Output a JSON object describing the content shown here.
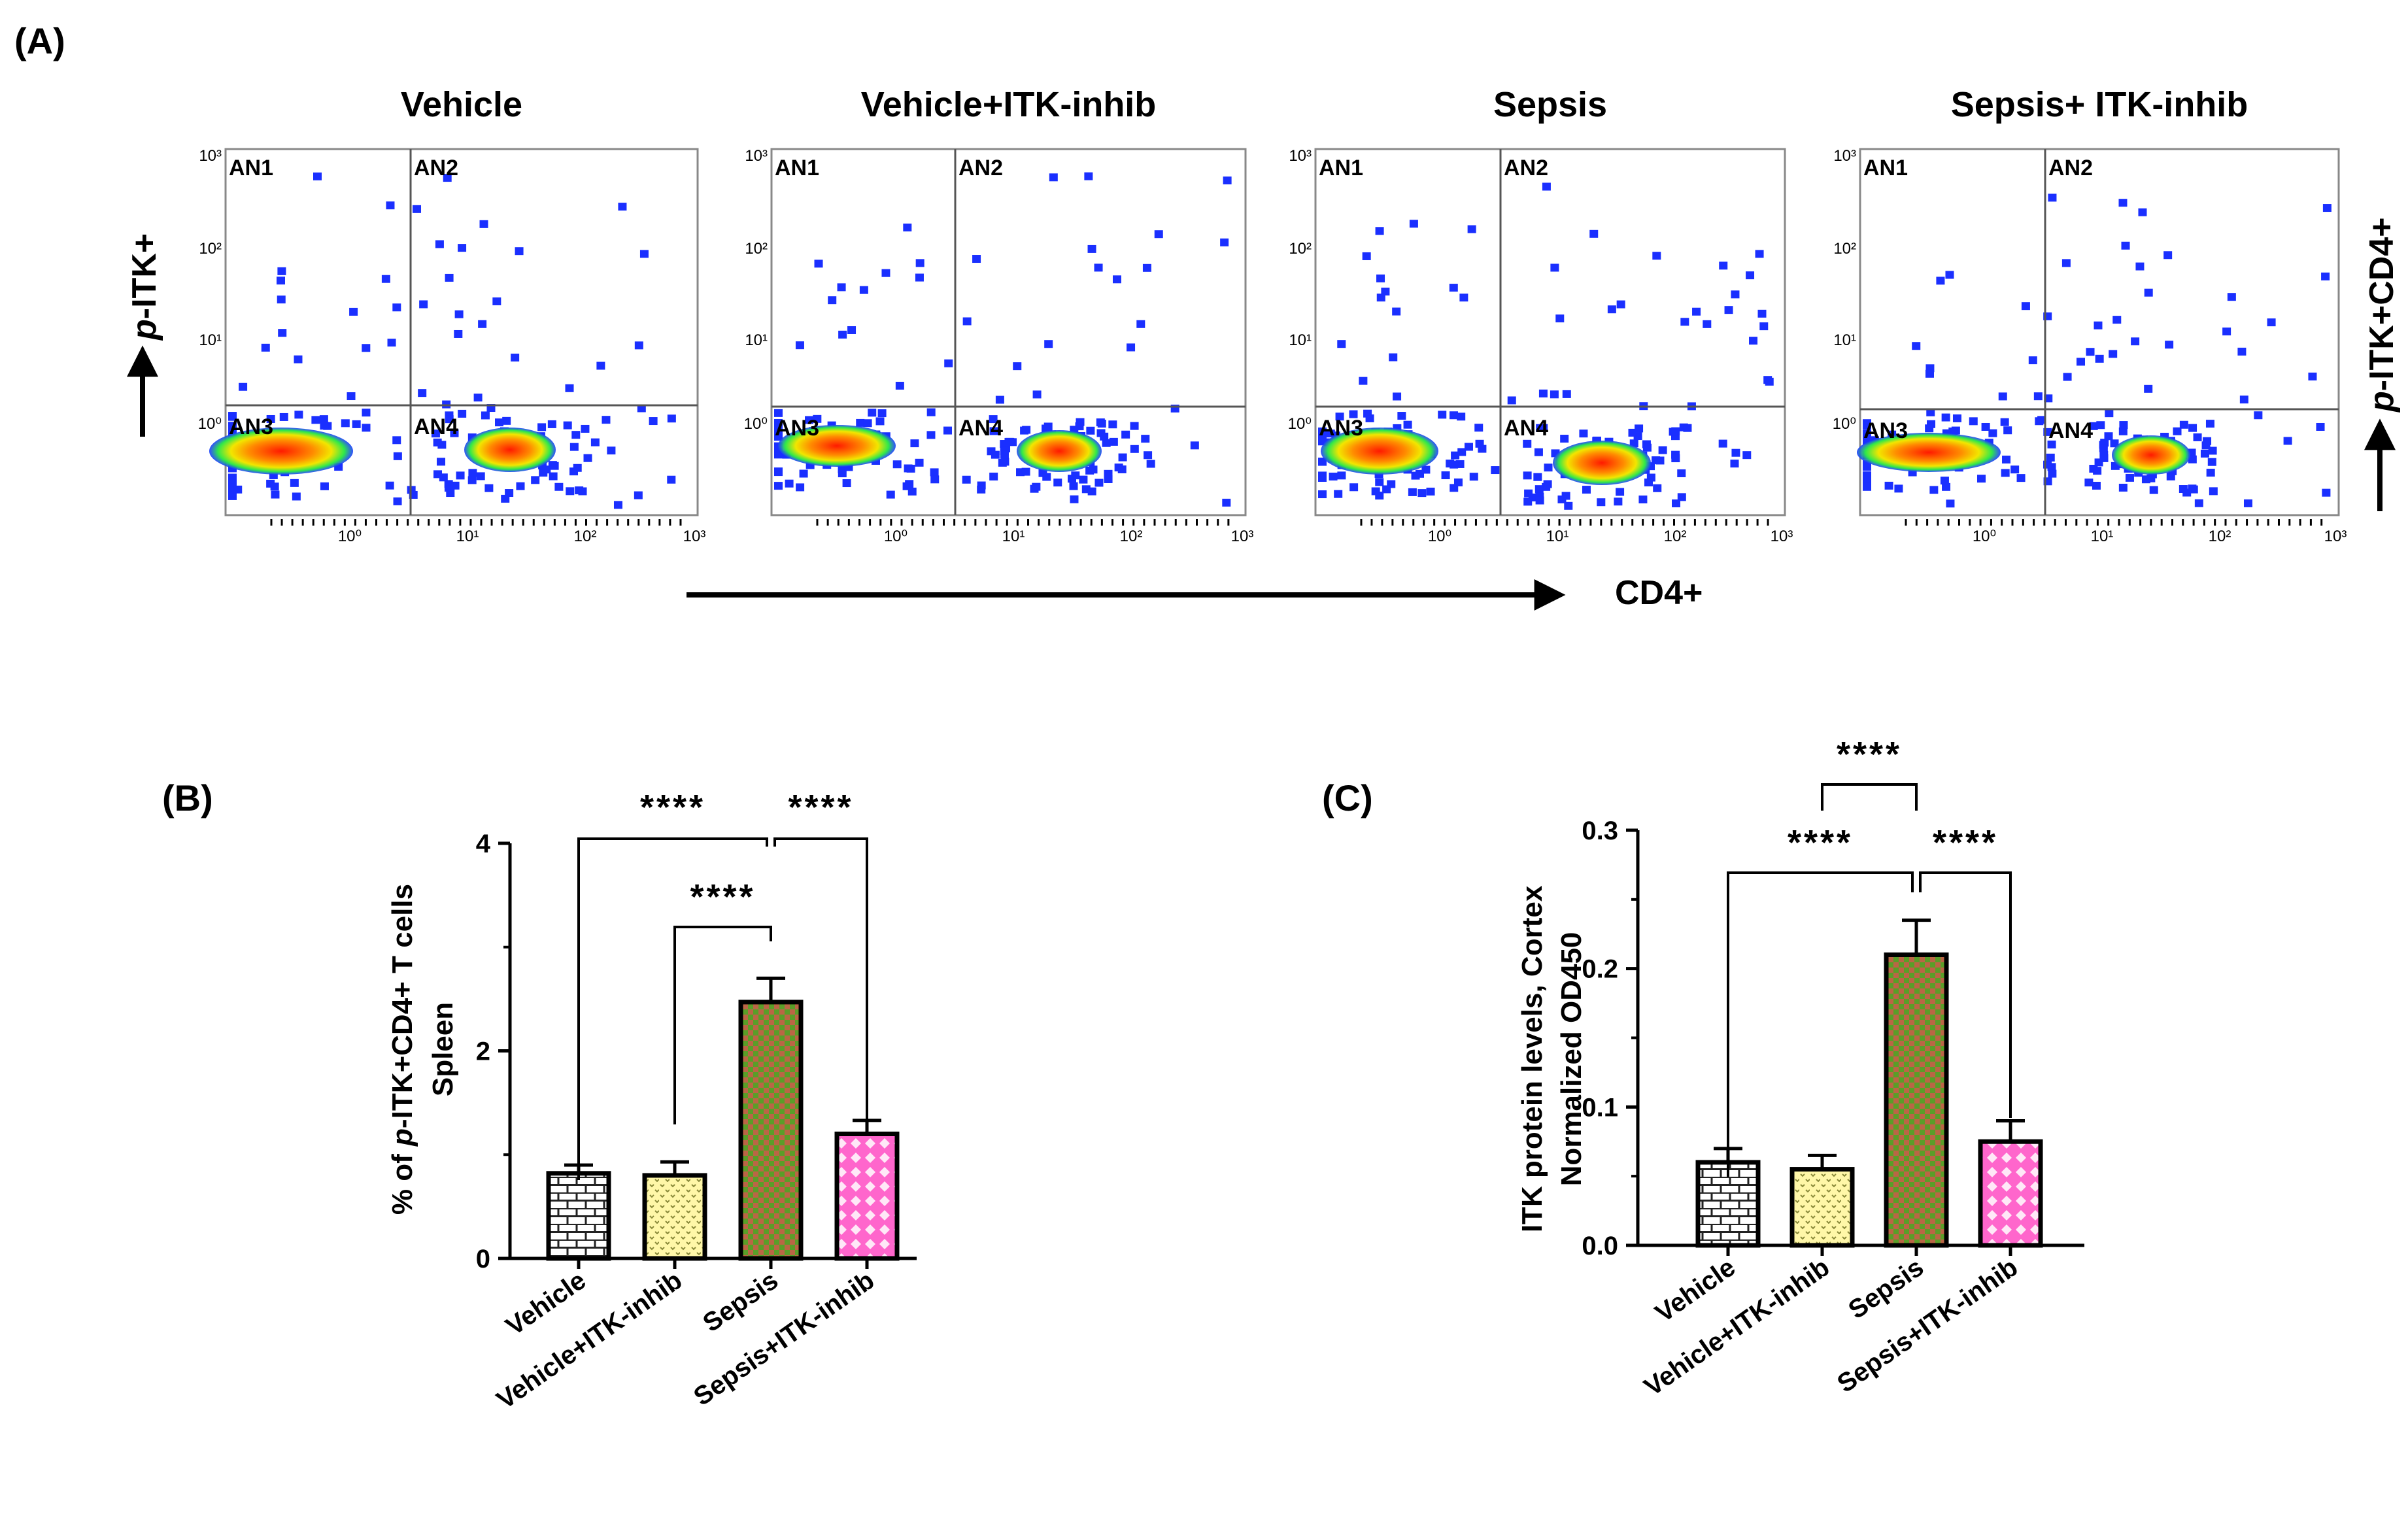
{
  "figure": {
    "panel_labels": {
      "a": "(A)",
      "b": "(B)",
      "c": "(C)"
    }
  },
  "chart_data": [
    {
      "type": "scatter",
      "panel": "A",
      "description_kind": "flow cytometry density plots",
      "x_axis_label": "CD4+",
      "y_axis_label_italic": "p",
      "y_axis_label_rest": "-ITK+",
      "right_label_italic": "p",
      "right_label_rest": "-ITK+CD4+",
      "decade_labels": [
        "10⁰",
        "10¹",
        "10²",
        "10³"
      ],
      "quadrants": [
        "AN1",
        "AN2",
        "AN3",
        "AN4"
      ],
      "plots": [
        {
          "title": "Vehicle"
        },
        {
          "title": "Vehicle+ITK-inhib"
        },
        {
          "title": "Sepsis"
        },
        {
          "title": "Sepsis+ ITK-inhib"
        }
      ]
    },
    {
      "type": "bar",
      "panel": "B",
      "categories": [
        "Vehicle",
        "Vehicle+ITK-inhib",
        "Sepsis",
        "Sepsis+ITK-inhib"
      ],
      "values": [
        0.82,
        0.8,
        2.47,
        1.2
      ],
      "errors": [
        0.08,
        0.13,
        0.23,
        0.13
      ],
      "ylabel_prefix": "% of ",
      "ylabel_italic": "p",
      "ylabel_suffix": "-ITK+CD4+ T cells",
      "ylabel_line2": "Spleen",
      "ylim": [
        0,
        4
      ],
      "yticks": [
        0,
        2,
        4
      ],
      "ytick_labels": [
        "0",
        "2",
        "4"
      ],
      "significance": [
        {
          "from": 0,
          "to": 2,
          "label": "****"
        },
        {
          "from": 2,
          "to": 3,
          "label": "****"
        },
        {
          "from": 1,
          "to": 2,
          "label": "****"
        }
      ],
      "bar_colors": [
        "#ffffff",
        "#fff7a8",
        "#5a9e28",
        "#ff66cc"
      ],
      "pattern_colors": [
        "#222222",
        "#8a8a3a",
        "#d9534f",
        "#ffffff"
      ]
    },
    {
      "type": "bar",
      "panel": "C",
      "categories": [
        "Vehicle",
        "Vehicle+ITK-inhib",
        "Sepsis",
        "Sepsis+ITK-inhib"
      ],
      "values": [
        0.06,
        0.055,
        0.21,
        0.075
      ],
      "errors": [
        0.01,
        0.01,
        0.025,
        0.015
      ],
      "ylabel_line1": "ITK protein levels, Cortex",
      "ylabel_line2": "Normalized OD450",
      "ylim": [
        0,
        0.3
      ],
      "yticks": [
        0,
        0.1,
        0.2,
        0.3
      ],
      "ytick_labels": [
        "0.0",
        "0.1",
        "0.2",
        "0.3"
      ],
      "significance": [
        {
          "from": 1,
          "to": 2,
          "label": "****"
        },
        {
          "from": 0,
          "to": 2,
          "label": "****"
        },
        {
          "from": 2,
          "to": 3,
          "label": "****"
        }
      ],
      "bar_colors": [
        "#ffffff",
        "#fff7a8",
        "#5a9e28",
        "#ff66cc"
      ],
      "pattern_colors": [
        "#222222",
        "#8a8a3a",
        "#d9534f",
        "#ffffff"
      ]
    }
  ]
}
